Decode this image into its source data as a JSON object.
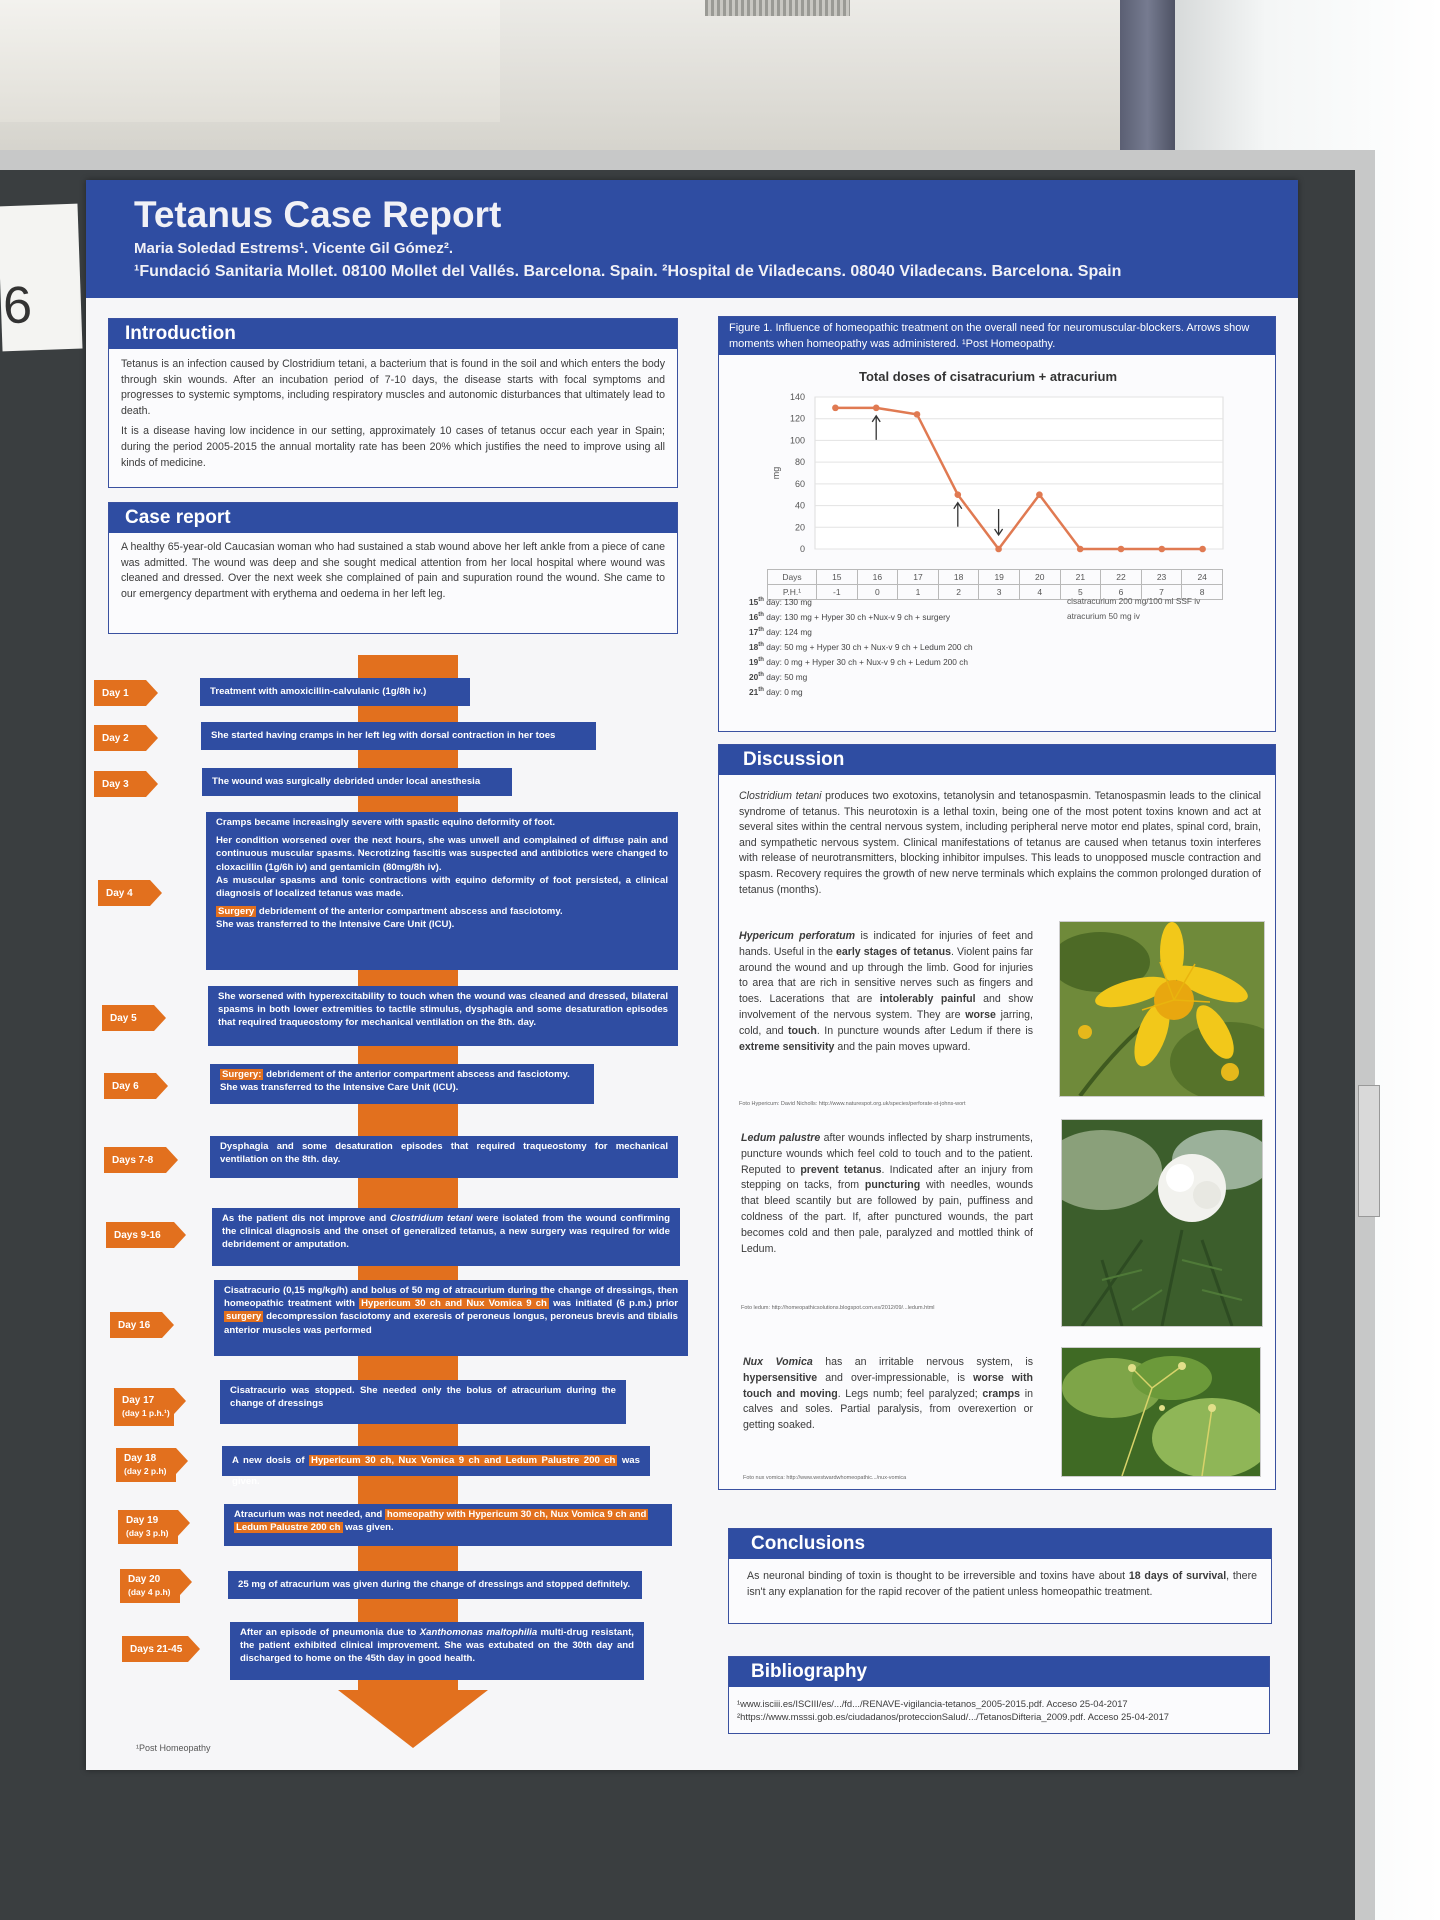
{
  "room": {
    "side_card_number": "6"
  },
  "header": {
    "title": "Tetanus Case Report",
    "authors": "Maria Soledad Estrems¹.  Vicente Gil Gómez².",
    "affiliation": "¹Fundació Sanitaria Mollet. 08100 Mollet del Vallés. Barcelona. Spain. ²Hospital de  Viladecans. 08040 Viladecans. Barcelona. Spain"
  },
  "introduction": {
    "heading": "Introduction",
    "p1": "Tetanus is an infection caused by Clostridium tetani, a bacterium that is found in the soil and which enters the body through skin wounds. After an incubation period of 7-10 days, the disease starts with focal symptoms and progresses to systemic symptoms, including respiratory muscles and autonomic disturbances that ultimately lead to death.",
    "p2": "It is a disease having low incidence in our setting, approximately 10 cases of tetanus occur each year in Spain; during the period 2005-2015 the annual mortality rate has been 20% which justifies the need to improve using all kinds of medicine."
  },
  "case_report": {
    "heading": "Case report",
    "text": "A healthy 65-year-old Caucasian woman who had sustained a stab wound above her left ankle from a piece of cane was admitted. The wound was deep and she sought medical attention from her local hospital where wound was cleaned and dressed. Over the next week she complained of pain and supuration round the wound. She came to our emergency department with erythema and oedema in her left leg."
  },
  "timeline": [
    {
      "day": "Day 1",
      "text": "Treatment with amoxicillin-calvulanic (1g/8h iv.)"
    },
    {
      "day": "Day 2",
      "text": "She started having cramps in her left leg with dorsal contraction in her toes"
    },
    {
      "day": "Day 3",
      "text": "The wound was surgically debrided under local anesthesia"
    },
    {
      "day": "Day 4",
      "p1": "Cramps became increasingly severe with spastic equino deformity of foot.",
      "p2": "Her condition worsened over the next hours, she was unwell and complained of diffuse pain and continuous muscular spasms. Necrotizing fascitis was suspected and antibiotics were changed to cloxacillin (1g/6h iv) and gentamicin (80mg/8h iv).",
      "p3": "As muscular spasms and tonic contractions with equino deformity of foot persisted, a clinical diagnosis of localized tetanus was made.",
      "hl": "Surgery",
      "p4": " debridement of the anterior compartment abscess and fasciotomy.",
      "p5": "She was transferred to the Intensive Care Unit (ICU)."
    },
    {
      "day": "Day 5",
      "text": "She worsened with hyperexcitability to touch when the wound was cleaned and dressed, bilateral spasms in both lower extremities to tactile stimulus, dysphagia and some desaturation episodes that required traqueostomy for mechanical ventilation on the 8th. day."
    },
    {
      "day": "Day 6",
      "hl": "Surgery:",
      "p1": " debridement of the anterior compartment abscess and fasciotomy.",
      "p2": "She was transferred to the Intensive Care Unit (ICU)."
    },
    {
      "day": "Days 7-8",
      "text": "Dysphagia and some desaturation episodes that required traqueostomy for mechanical ventilation on the 8th. day."
    },
    {
      "day": "Days 9-16",
      "pre": "As the patient dis not improve and ",
      "ital": "Clostridium tetani",
      "post": " were isolated from the wound confirming the clinical diagnosis and the onset of generalized tetanus, a new surgery was required for wide debridement or amputation."
    },
    {
      "day": "Day 16",
      "a": "Cisatracurio (0,15 mg/kg/h) and bolus of 50 mg of atracurium during the change of dressings, then homeopathic treatment with ",
      "hl1": "Hypericum 30 ch and Nux Vomica 9 ch",
      "b": " was initiated (6 p.m.) prior ",
      "hl2": "surgery",
      "c": " decompression fasciotomy and exeresis of peroneus longus, peroneus brevis and tibialis anterior muscles was performed"
    },
    {
      "day": "Day 17",
      "sub": "(day 1 p.h.¹)",
      "text": "Cisatracurio was stopped. She needed only the bolus of atracurium during the change of dressings"
    },
    {
      "day": "Day 18",
      "sub": "(day 2 p.h)",
      "a": "A new dosis of ",
      "hl": "Hypericum 30 ch, Nux Vomica 9 ch and Ledum Palustre 200 ch",
      "b": " was given."
    },
    {
      "day": "Day 19",
      "sub": "(day 3 p.h)",
      "a": "Atracurium was not needed, and ",
      "hl1": "homeopathy with  Hypericum 30 ch, Nux Vomica 9 ch and",
      "hl2": "Ledum Palustre 200 ch",
      "b": " was given."
    },
    {
      "day": "Day 20",
      "sub": "(day 4 p.h)",
      "text": "25 mg of atracurium was given during the change of dressings and stopped definitely."
    },
    {
      "day": "Days 21-45",
      "a": "After an episode of pneumonia due to ",
      "ital": "Xanthomonas maltophilia",
      "b": " multi-drug resistant, the patient exhibited clinical improvement. She was extubated on the 30th day and discharged to home on the 45th day in good health."
    }
  ],
  "footnote": "¹Post Homeopathy",
  "figure": {
    "caption": "Figure 1. Influence of homeopathic treatment on the overall need for neuromuscular-blockers. Arrows show moments when homeopathy was administered. ¹Post Homeopathy.",
    "legend_left": [
      {
        "sup": "15th",
        "text": " day: 130 mg"
      },
      {
        "sup": "16th",
        "text": " day: 130 mg + Hyper 30 ch +Nux-v 9 ch + surgery"
      },
      {
        "sup": "17th",
        "text": " day: 124 mg"
      },
      {
        "sup": "18th",
        "text": " day: 50 mg + Hyper 30 ch + Nux-v 9 ch + Ledum 200 ch"
      },
      {
        "sup": "19th",
        "text": " day: 0 mg + Hyper 30 ch + Nux-v 9 ch + Ledum 200 ch"
      },
      {
        "sup": "20th",
        "text": " day: 50 mg"
      },
      {
        "sup": "21th",
        "text": " day: 0 mg"
      }
    ],
    "legend_right": [
      "cisatracurium 200 mg/100 ml SSF  iv",
      "atracurium 50 mg  iv"
    ],
    "table_row_labels": [
      "Days",
      "P.H.¹"
    ]
  },
  "chart_data": {
    "type": "line",
    "title": "Total doses of cisatracurium + atracurium",
    "ylabel": "mg",
    "xlabel": "",
    "categories": [
      "15",
      "16",
      "17",
      "18",
      "19",
      "20",
      "21",
      "22",
      "23",
      "24"
    ],
    "ph_row": [
      "-1",
      "0",
      "1",
      "2",
      "3",
      "4",
      "5",
      "6",
      "7",
      "8"
    ],
    "values": [
      130,
      130,
      124,
      50,
      0,
      50,
      0,
      0,
      0,
      0
    ],
    "ylim": [
      0,
      140
    ],
    "yticks": [
      0,
      20,
      40,
      60,
      80,
      100,
      120,
      140
    ],
    "grid": true,
    "arrows": [
      {
        "category": "16",
        "direction": "up"
      },
      {
        "category": "18",
        "direction": "up"
      },
      {
        "category": "19",
        "direction": "down"
      }
    ],
    "color": "#e07a52"
  },
  "discussion": {
    "heading": "Discussion",
    "intro_ital": "Clostridium tetani",
    "intro": " produces two exotoxins, tetanolysin and tetanospasmin. Tetanospasmin leads to the clinical syndrome of tetanus. This neurotoxin is a lethal toxin, being one of the most potent toxins known and act at several sites within the central nervous system, including peripheral nerve motor end plates, spinal cord, brain, and sympathetic nervous system. Clinical manifestations of tetanus are caused when tetanus toxin interferes with release of neurotransmitters, blocking inhibitor impulses. This leads to unopposed muscle contraction and spasm. Recovery requires the growth of new nerve terminals which explains the common prolonged duration of tetanus (months).",
    "hypericum": {
      "name": "Hypericum perforatum",
      "t1": " is indicated for injuries of feet and hands. Useful in the ",
      "b1": "early stages of tetanus",
      "t2": ". Violent pains far around the wound and up through the limb. Good for injuries to area that are rich in sensitive nerves such as fingers and toes. Lacerations that are ",
      "b2": "intolerably painful",
      "t3": " and show involvement of the nervous system. They are ",
      "b3": "worse",
      "t4": " jarring, cold, and ",
      "b4": "touch",
      "t5": ". In puncture wounds after Ledum if there is ",
      "b5": "extreme sensitivity",
      "t6": " and the pain moves upward.",
      "credit": "Foto Hypericum: David Nicholls:      http://www.naturespot.org.uk/species/perforate-st-johns-wort"
    },
    "ledum": {
      "name": "Ledum palustre",
      "t1": " after wounds inflected by sharp instruments, puncture wounds which feel cold to touch and to the patient. Reputed to ",
      "b1": "prevent tetanus",
      "t2": ". Indicated after an injury from stepping on tacks, from ",
      "b2": "puncturing",
      "t3": " with needles, wounds that bleed scantily but are followed by pain, puffiness and coldness of the part. If, after punctured wounds, the part becomes cold and then pale, paralyzed and mottled think of Ledum.",
      "credit": "Foto ledum: http://homeopathicsolutions.blogspot.com.es/2012/09/...ledum.html"
    },
    "nux": {
      "name": "Nux Vomica",
      "t1": " has an irritable nervous system, is ",
      "b1": "hypersensitive",
      "t2": " and over-impressionable, is ",
      "b2": "worse with touch and moving",
      "t3": ". Legs numb; feel paralyzed; ",
      "b3": "cramps",
      "t4": " in calves and soles. Partial paralysis, from overexertion or getting soaked.",
      "credit": "Foto nux vomica: http://www.westwardwhomeopathic.../nux-vomica"
    }
  },
  "conclusions": {
    "heading": "Conclusions",
    "t1": "As neuronal binding of toxin is thought to be irreversible and toxins have about ",
    "b1": "18 days of survival",
    "t2": ", there isn't any explanation for the rapid recover of the patient unless homeopathic treatment."
  },
  "bibliography": {
    "heading": "Bibliography",
    "refs": [
      "¹www.isciii.es/ISCIII/es/.../fd.../RENAVE-vigilancia-tetanos_2005-2015.pdf. Acceso 25-04-2017",
      "²https://www.msssi.gob.es/ciudadanos/proteccionSalud/.../TetanosDifteria_2009.pdf. Acceso 25-04-2017"
    ]
  }
}
